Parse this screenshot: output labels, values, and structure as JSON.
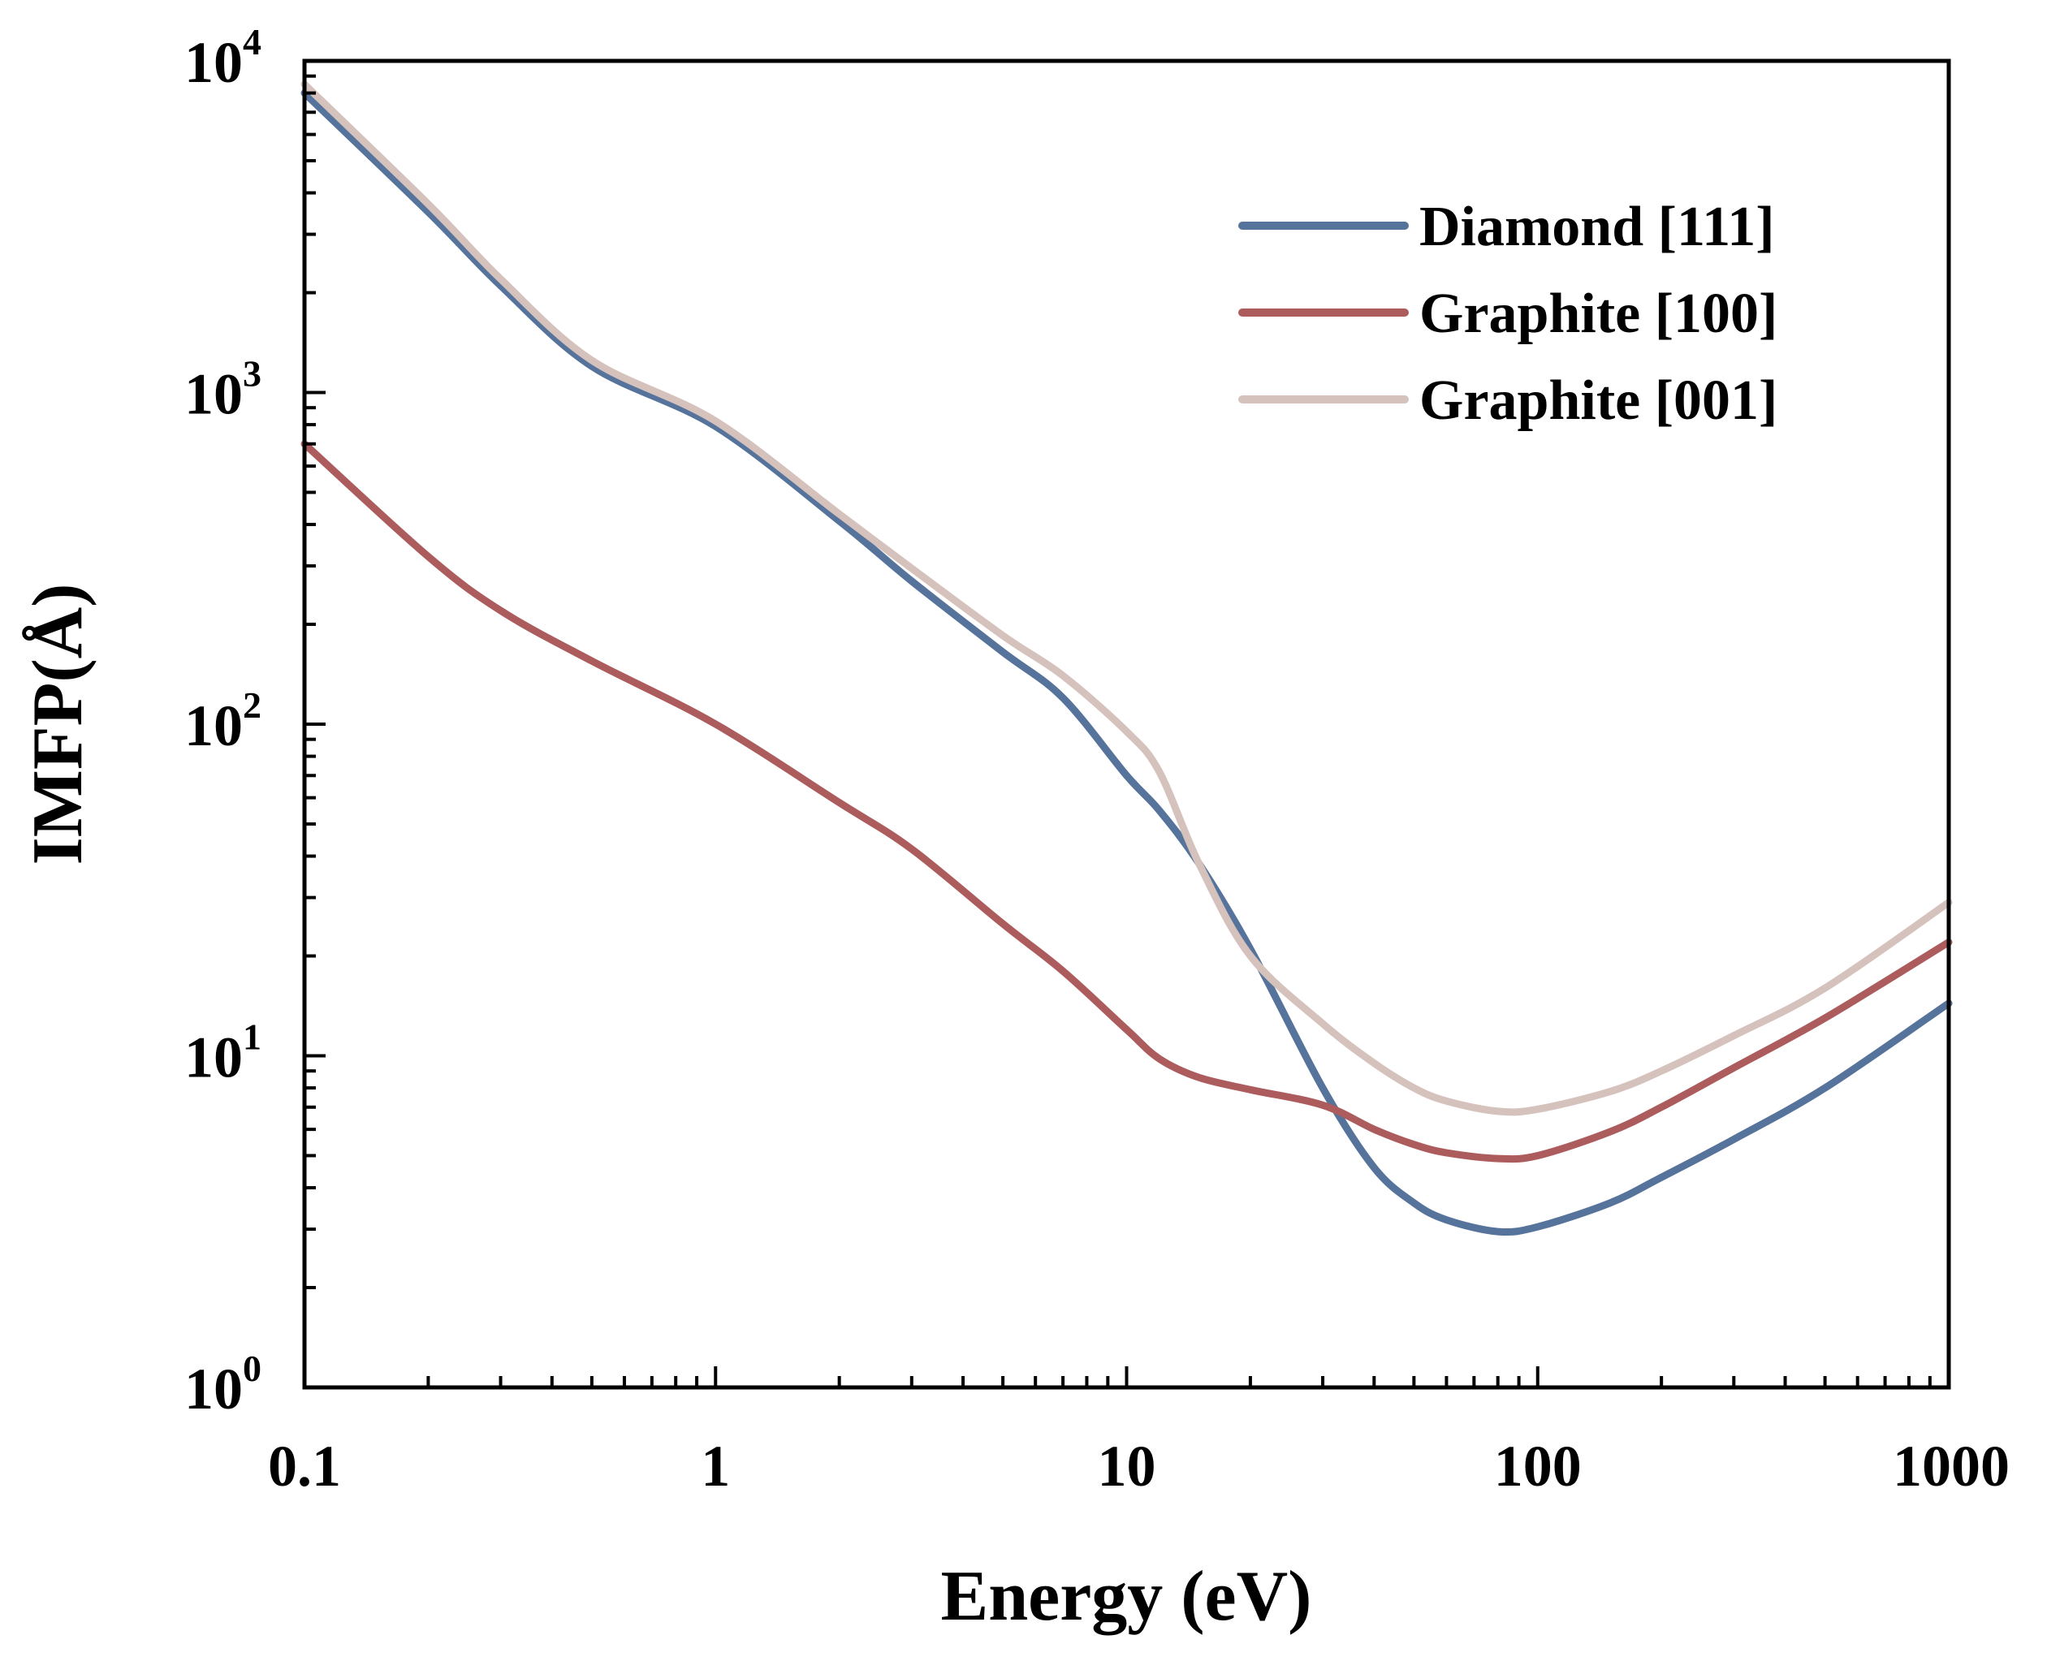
{
  "chart_data": {
    "type": "line",
    "title": "",
    "xlabel": "Energy (eV)",
    "ylabel": "IMFP(Å)",
    "xscale": "log",
    "yscale": "log",
    "xlim": [
      0.1,
      1000
    ],
    "ylim": [
      1,
      10000
    ],
    "grid": false,
    "legend_position": "top-right",
    "x_ticks": [
      {
        "value": 0.1,
        "label": "0.1"
      },
      {
        "value": 1,
        "label": "1"
      },
      {
        "value": 10,
        "label": "10"
      },
      {
        "value": 100,
        "label": "100"
      },
      {
        "value": 1000,
        "label": "1000"
      }
    ],
    "y_ticks": [
      {
        "value": 1,
        "base": "10",
        "exp": "0"
      },
      {
        "value": 10,
        "base": "10",
        "exp": "1"
      },
      {
        "value": 100,
        "base": "10",
        "exp": "2"
      },
      {
        "value": 1000,
        "base": "10",
        "exp": "3"
      },
      {
        "value": 10000,
        "base": "10",
        "exp": "4"
      }
    ],
    "series": [
      {
        "name": "Diamond [111]",
        "color": "#56739b",
        "x": [
          0.1,
          0.2,
          0.3,
          0.5,
          1,
          2,
          3,
          5,
          7,
          10,
          12,
          15,
          20,
          30,
          40,
          50,
          60,
          80,
          100,
          150,
          200,
          300,
          500,
          1000
        ],
        "y": [
          8000,
          3500,
          2100,
          1200,
          790,
          410,
          270,
          165,
          120,
          70,
          55,
          38,
          21,
          8,
          4.6,
          3.6,
          3.2,
          2.95,
          3.05,
          3.6,
          4.3,
          5.6,
          8.0,
          14.4
        ]
      },
      {
        "name": "Graphite [100]",
        "color": "#ac5c5c",
        "x": [
          0.1,
          0.2,
          0.3,
          0.5,
          1,
          2,
          3,
          5,
          7,
          10,
          12,
          15,
          20,
          30,
          40,
          50,
          60,
          80,
          100,
          150,
          200,
          300,
          500,
          1000
        ],
        "y": [
          700,
          320,
          220,
          155,
          100,
          58,
          42,
          25,
          18,
          12,
          9.8,
          8.6,
          7.9,
          7.1,
          6.0,
          5.4,
          5.1,
          4.9,
          5.0,
          5.9,
          7.0,
          9.2,
          13,
          22
        ]
      },
      {
        "name": "Graphite [001]",
        "color": "#d6c2bd",
        "x": [
          0.1,
          0.2,
          0.3,
          0.5,
          1,
          2,
          3,
          5,
          7,
          10,
          12,
          15,
          20,
          30,
          40,
          50,
          60,
          80,
          100,
          150,
          200,
          300,
          500,
          1000
        ],
        "y": [
          8500,
          3700,
          2200,
          1250,
          820,
          430,
          295,
          185,
          140,
          95,
          72,
          38,
          20,
          12.5,
          9.5,
          8.0,
          7.3,
          6.8,
          6.9,
          7.8,
          9.0,
          11.5,
          16,
          29
        ]
      }
    ]
  }
}
